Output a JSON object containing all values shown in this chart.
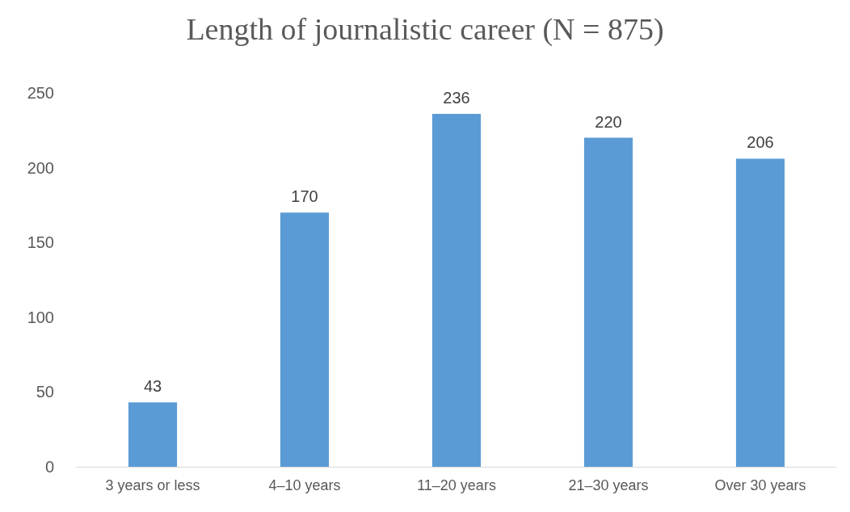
{
  "chart_data": {
    "type": "bar",
    "title": "Length of journalistic career (N = 875)",
    "categories": [
      "3 years or less",
      "4–10 years",
      "11–20 years",
      "21–30 years",
      "Over 30 years"
    ],
    "values": [
      43,
      170,
      236,
      220,
      206
    ],
    "color": "#5b9bd5",
    "ylim": [
      0,
      250
    ],
    "yticks": [
      0,
      50,
      100,
      150,
      200,
      250
    ],
    "grid": false,
    "data_labels": true
  }
}
